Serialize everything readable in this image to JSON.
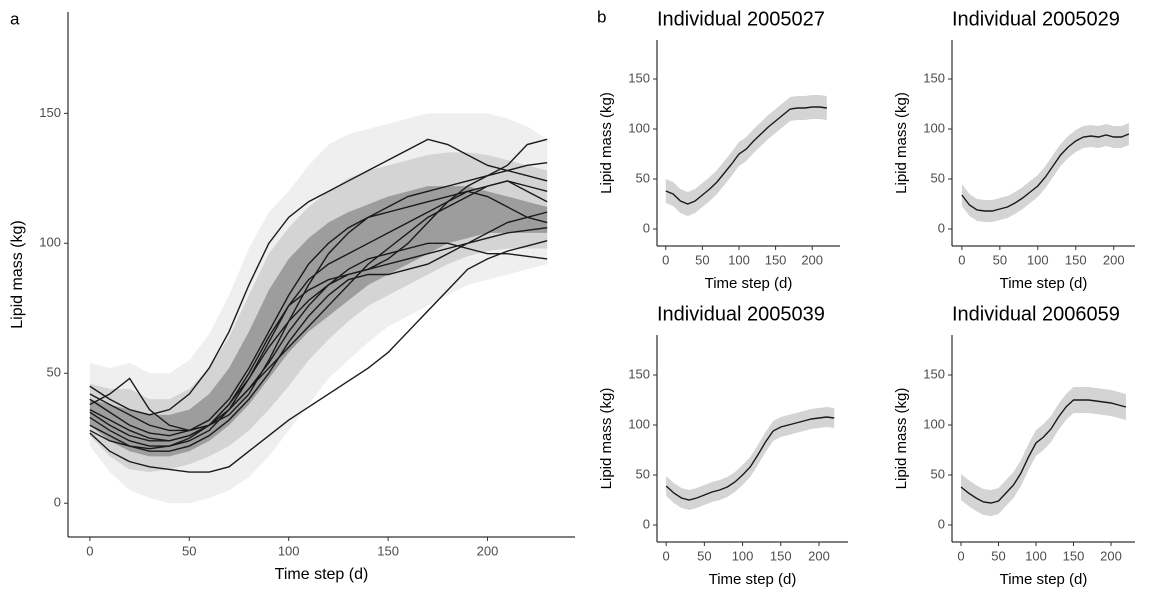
{
  "chart_data": [
    {
      "type": "line",
      "panel_label": "a",
      "xlabel": "Time step (d)",
      "ylabel": "Lipid mass (kg)",
      "xlim": [
        -11,
        244
      ],
      "ylim": [
        -13,
        189
      ],
      "xticks": [
        0,
        50,
        100,
        150,
        200
      ],
      "yticks": [
        0,
        50,
        100,
        150
      ],
      "x": [
        0,
        10,
        20,
        30,
        40,
        50,
        60,
        70,
        80,
        90,
        100,
        110,
        120,
        130,
        140,
        150,
        160,
        170,
        180,
        190,
        200,
        210,
        220,
        230
      ],
      "bands": [
        {
          "color": "#ebebeb",
          "lower": [
            22,
            12,
            5,
            2,
            0,
            0,
            2,
            5,
            10,
            18,
            28,
            38,
            48,
            55,
            62,
            68,
            72,
            76,
            80,
            84,
            86,
            88,
            90,
            92
          ],
          "upper": [
            54,
            52,
            54,
            50,
            50,
            55,
            65,
            80,
            98,
            112,
            120,
            130,
            138,
            142,
            144,
            146,
            148,
            150,
            150,
            150,
            150,
            148,
            145,
            140
          ]
        },
        {
          "color": "#cdcdcd",
          "lower": [
            26,
            18,
            13,
            12,
            13,
            15,
            18,
            22,
            28,
            36,
            45,
            55,
            63,
            70,
            76,
            80,
            84,
            88,
            92,
            95,
            97,
            98,
            98,
            98
          ],
          "upper": [
            46,
            44,
            44,
            40,
            40,
            44,
            52,
            64,
            80,
            96,
            106,
            114,
            120,
            125,
            128,
            130,
            132,
            134,
            135,
            135,
            134,
            132,
            130,
            128
          ]
        },
        {
          "color": "#8f8f8f",
          "lower": [
            30,
            24,
            20,
            18,
            18,
            20,
            24,
            30,
            38,
            48,
            58,
            66,
            72,
            78,
            84,
            88,
            92,
            96,
            100,
            102,
            104,
            104,
            104,
            104
          ],
          "upper": [
            40,
            38,
            36,
            34,
            34,
            36,
            42,
            52,
            66,
            82,
            94,
            102,
            108,
            112,
            115,
            118,
            120,
            122,
            122,
            122,
            120,
            118,
            116,
            114
          ]
        }
      ],
      "series": [
        {
          "color": "#1a1a1a",
          "values": [
            45,
            40,
            36,
            34,
            36,
            42,
            52,
            66,
            84,
            100,
            110,
            116,
            120,
            124,
            128,
            132,
            136,
            140,
            138,
            134,
            130,
            128,
            126,
            124
          ]
        },
        {
          "color": "#1a1a1a",
          "values": [
            27,
            20,
            16,
            14,
            13,
            12,
            12,
            14,
            20,
            26,
            32,
            37,
            42,
            47,
            52,
            58,
            66,
            74,
            82,
            90,
            94,
            97,
            99,
            101
          ]
        },
        {
          "color": "#1a1a1a",
          "values": [
            38,
            42,
            48,
            36,
            30,
            28,
            30,
            34,
            42,
            55,
            70,
            84,
            96,
            104,
            110,
            114,
            118,
            120,
            122,
            124,
            126,
            128,
            130,
            131
          ]
        },
        {
          "color": "#1a1a1a",
          "values": [
            33,
            28,
            24,
            22,
            22,
            24,
            28,
            36,
            48,
            62,
            76,
            86,
            92,
            96,
            100,
            104,
            108,
            112,
            116,
            120,
            122,
            124,
            122,
            120
          ]
        },
        {
          "color": "#1a1a1a",
          "values": [
            40,
            35,
            30,
            27,
            26,
            28,
            32,
            40,
            52,
            66,
            80,
            92,
            100,
            106,
            110,
            112,
            114,
            116,
            118,
            120,
            118,
            114,
            110,
            108
          ]
        },
        {
          "color": "#1a1a1a",
          "values": [
            30,
            26,
            22,
            20,
            20,
            22,
            26,
            32,
            40,
            50,
            62,
            72,
            80,
            86,
            88,
            88,
            90,
            92,
            96,
            100,
            104,
            108,
            110,
            112
          ]
        },
        {
          "color": "#1a1a1a",
          "values": [
            36,
            32,
            28,
            25,
            24,
            26,
            30,
            38,
            50,
            64,
            76,
            82,
            86,
            88,
            90,
            92,
            94,
            96,
            98,
            100,
            102,
            104,
            105,
            106
          ]
        },
        {
          "color": "#1a1a1a",
          "values": [
            42,
            38,
            34,
            30,
            28,
            28,
            30,
            36,
            44,
            54,
            66,
            76,
            84,
            90,
            94,
            96,
            98,
            100,
            100,
            98,
            96,
            96,
            95,
            94
          ]
        },
        {
          "color": "#1a1a1a",
          "values": [
            28,
            24,
            22,
            21,
            22,
            25,
            30,
            38,
            48,
            60,
            70,
            78,
            84,
            88,
            90,
            94,
            100,
            108,
            116,
            122,
            126,
            130,
            138,
            140
          ]
        },
        {
          "color": "#1a1a1a",
          "values": [
            35,
            30,
            26,
            24,
            24,
            26,
            30,
            36,
            44,
            52,
            60,
            68,
            76,
            84,
            92,
            98,
            104,
            110,
            114,
            118,
            122,
            124,
            120,
            116
          ]
        }
      ]
    },
    {
      "type": "line",
      "panel_label": "b",
      "title": "Individual 2005027",
      "xlabel": "Time step (d)",
      "ylabel": "Lipid mass (kg)",
      "xlim": [
        -12,
        238
      ],
      "ylim": [
        -17,
        189
      ],
      "xticks": [
        0,
        50,
        100,
        150,
        200
      ],
      "yticks": [
        0,
        50,
        100,
        150
      ],
      "error": 12,
      "band_color": "#d4d4d4",
      "x": [
        0,
        10,
        20,
        30,
        40,
        50,
        60,
        70,
        80,
        90,
        100,
        110,
        120,
        130,
        140,
        150,
        160,
        170,
        180,
        190,
        200,
        210,
        220
      ],
      "series": [
        {
          "color": "#1a1a1a",
          "values": [
            38,
            35,
            28,
            25,
            28,
            34,
            40,
            47,
            56,
            65,
            75,
            80,
            88,
            95,
            102,
            108,
            114,
            120,
            121,
            121,
            122,
            122,
            121
          ]
        }
      ]
    },
    {
      "type": "line",
      "title": "Individual 2005029",
      "xlabel": "Time step (d)",
      "ylabel": "Lipid mass (kg)",
      "xlim": [
        -13,
        228
      ],
      "ylim": [
        -17,
        189
      ],
      "xticks": [
        0,
        50,
        100,
        150,
        200
      ],
      "yticks": [
        0,
        50,
        100,
        150
      ],
      "error": 11,
      "band_color": "#d4d4d4",
      "x": [
        0,
        10,
        20,
        30,
        40,
        50,
        60,
        70,
        80,
        90,
        100,
        110,
        120,
        130,
        140,
        150,
        160,
        170,
        180,
        190,
        200,
        210,
        220
      ],
      "series": [
        {
          "color": "#1a1a1a",
          "values": [
            34,
            24,
            19,
            18,
            18,
            20,
            22,
            26,
            31,
            37,
            43,
            52,
            63,
            74,
            82,
            88,
            92,
            93,
            92,
            94,
            92,
            92,
            95
          ]
        }
      ]
    },
    {
      "type": "line",
      "title": "Individual 2005039",
      "xlabel": "Time step (d)",
      "ylabel": "Lipid mass (kg)",
      "xlim": [
        -12,
        238
      ],
      "ylim": [
        -17,
        190
      ],
      "xticks": [
        0,
        50,
        100,
        150,
        200
      ],
      "yticks": [
        0,
        50,
        100,
        150
      ],
      "error": 10,
      "band_color": "#d4d4d4",
      "x": [
        0,
        10,
        20,
        30,
        40,
        50,
        60,
        70,
        80,
        90,
        100,
        110,
        120,
        130,
        140,
        150,
        160,
        170,
        180,
        190,
        200,
        210,
        220
      ],
      "series": [
        {
          "color": "#1a1a1a",
          "values": [
            39,
            32,
            27,
            25,
            27,
            30,
            33,
            35,
            38,
            43,
            50,
            58,
            70,
            83,
            94,
            98,
            100,
            102,
            104,
            106,
            107,
            108,
            107
          ]
        }
      ]
    },
    {
      "type": "line",
      "title": "Individual 2006059",
      "xlabel": "Time step (d)",
      "ylabel": "Lipid mass (kg)",
      "xlim": [
        -12,
        232
      ],
      "ylim": [
        -17,
        190
      ],
      "xticks": [
        0,
        50,
        100,
        150,
        200
      ],
      "yticks": [
        0,
        50,
        100,
        150
      ],
      "error": 13,
      "band_color": "#d4d4d4",
      "x": [
        0,
        10,
        20,
        30,
        40,
        50,
        60,
        70,
        80,
        90,
        100,
        110,
        120,
        130,
        140,
        150,
        160,
        170,
        180,
        190,
        200,
        210,
        220
      ],
      "series": [
        {
          "color": "#1a1a1a",
          "values": [
            38,
            32,
            27,
            23,
            22,
            24,
            32,
            40,
            52,
            68,
            82,
            88,
            96,
            108,
            118,
            125,
            125,
            125,
            124,
            123,
            122,
            120,
            118
          ]
        }
      ]
    }
  ]
}
